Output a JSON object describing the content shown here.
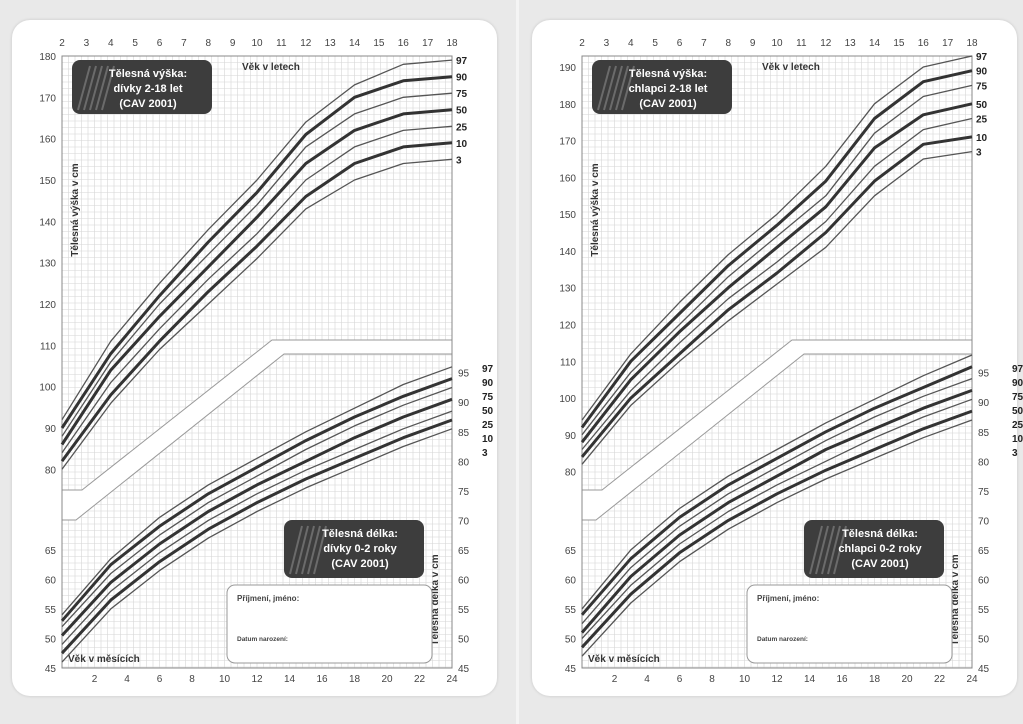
{
  "panels": [
    {
      "title_top": [
        "Tělesná výška:",
        "dívky 2-18 let",
        "(CAV 2001)"
      ],
      "title_bottom": [
        "Tělesná délka:",
        "dívky 0-2 roky",
        "(CAV 2001)"
      ],
      "top_axis_label": "Věk v letech",
      "left_axis_label": "Tělesná výška v cm",
      "right_axis_label": "Tělesná délka v cm",
      "bottom_axis_label": "Věk v měsících",
      "name_label": "Příjmení, jméno:",
      "dob_label": "Datum narození:"
    },
    {
      "title_top": [
        "Tělesná výška:",
        "chlapci 2-18 let",
        "(CAV 2001)"
      ],
      "title_bottom": [
        "Tělesná délka:",
        "chlapci 0-2 roky",
        "(CAV 2001)"
      ],
      "top_axis_label": "Věk v letech",
      "left_axis_label": "Tělesná výška v cm",
      "right_axis_label": "Tělesná délka v cm",
      "bottom_axis_label": "Věk v měsících",
      "name_label": "Příjmení, jméno:",
      "dob_label": "Datum narození:"
    }
  ],
  "chart_data": [
    {
      "type": "line",
      "title": "Tělesná výška: dívky 2-18 let (CAV 2001)",
      "xlabel": "Věk v letech",
      "ylabel": "Tělesná výška v cm",
      "x": [
        2,
        4,
        6,
        8,
        10,
        12,
        14,
        16,
        18
      ],
      "x_ticks": [
        2,
        3,
        4,
        5,
        6,
        7,
        8,
        9,
        10,
        11,
        12,
        13,
        14,
        15,
        16,
        17,
        18
      ],
      "xlim": [
        2,
        18
      ],
      "y_ticks": [
        80,
        90,
        100,
        110,
        120,
        130,
        140,
        150,
        160,
        170,
        180
      ],
      "ylim": [
        75,
        180
      ],
      "series": [
        {
          "name": "97",
          "values": [
            92,
            111,
            125,
            138,
            150,
            164,
            173,
            178,
            179
          ]
        },
        {
          "name": "90",
          "values": [
            90,
            108,
            122,
            135,
            147,
            161,
            170,
            174,
            175
          ]
        },
        {
          "name": "75",
          "values": [
            88,
            106,
            120,
            132,
            144,
            158,
            166,
            170,
            171
          ]
        },
        {
          "name": "50",
          "values": [
            86,
            104,
            117,
            129,
            141,
            154,
            162,
            166,
            167
          ]
        },
        {
          "name": "25",
          "values": [
            84,
            101,
            114,
            126,
            137,
            150,
            158,
            162,
            163
          ]
        },
        {
          "name": "10",
          "values": [
            82,
            98,
            111,
            123,
            134,
            146,
            154,
            158,
            159
          ]
        },
        {
          "name": "3",
          "values": [
            80,
            96,
            109,
            120,
            131,
            143,
            150,
            154,
            155
          ]
        }
      ],
      "grid": true
    },
    {
      "type": "line",
      "title": "Tělesná délka: dívky 0-2 roky (CAV 2001)",
      "xlabel": "Věk v měsících",
      "ylabel": "Tělesná délka v cm",
      "x": [
        0,
        3,
        6,
        9,
        12,
        15,
        18,
        21,
        24
      ],
      "x_ticks": [
        2,
        4,
        6,
        8,
        10,
        12,
        14,
        16,
        18,
        20,
        22,
        24
      ],
      "xlim": [
        0,
        24
      ],
      "y_ticks_left": [
        45,
        50,
        55,
        60,
        65
      ],
      "y_ticks_right": [
        45,
        50,
        55,
        60,
        65,
        70,
        75,
        80,
        85,
        90,
        95
      ],
      "ylim": [
        45,
        98
      ],
      "series": [
        {
          "name": "97",
          "values": [
            54,
            63.5,
            70.5,
            76,
            80.5,
            85,
            89,
            93,
            96
          ]
        },
        {
          "name": "90",
          "values": [
            53,
            62.5,
            69,
            74.5,
            79,
            83.5,
            87.5,
            91,
            94
          ]
        },
        {
          "name": "75",
          "values": [
            52,
            61,
            67.5,
            73,
            77.5,
            82,
            86,
            89.5,
            92.5
          ]
        },
        {
          "name": "50",
          "values": [
            50.5,
            59.5,
            66,
            71.5,
            76,
            80,
            84,
            87.5,
            90.5
          ]
        },
        {
          "name": "25",
          "values": [
            49,
            58,
            64.5,
            70,
            74.5,
            78.5,
            82,
            85.5,
            88.5
          ]
        },
        {
          "name": "10",
          "values": [
            47.5,
            56.5,
            63,
            68.5,
            73,
            77,
            80.5,
            84,
            87
          ]
        },
        {
          "name": "3",
          "values": [
            46,
            55,
            61.5,
            67,
            71.5,
            75.5,
            79,
            82.5,
            85.5
          ]
        }
      ],
      "grid": true
    },
    {
      "type": "line",
      "title": "Tělesná výška: chlapci 2-18 let (CAV 2001)",
      "xlabel": "Věk v letech",
      "ylabel": "Tělesná výška v cm",
      "x": [
        2,
        4,
        6,
        8,
        10,
        12,
        14,
        16,
        18
      ],
      "x_ticks": [
        2,
        3,
        4,
        5,
        6,
        7,
        8,
        9,
        10,
        11,
        12,
        13,
        14,
        15,
        16,
        17,
        18
      ],
      "xlim": [
        2,
        18
      ],
      "y_ticks": [
        80,
        90,
        100,
        110,
        120,
        130,
        140,
        150,
        160,
        170,
        180,
        190
      ],
      "ylim": [
        75,
        193
      ],
      "series": [
        {
          "name": "97",
          "values": [
            94,
            112,
            126,
            139,
            150,
            163,
            180,
            190,
            193
          ]
        },
        {
          "name": "90",
          "values": [
            92,
            110,
            123,
            136,
            147,
            159,
            176,
            186,
            189
          ]
        },
        {
          "name": "75",
          "values": [
            90,
            107,
            120,
            133,
            144,
            155,
            172,
            182,
            185
          ]
        },
        {
          "name": "50",
          "values": [
            88,
            105,
            118,
            130,
            141,
            152,
            168,
            177,
            180
          ]
        },
        {
          "name": "25",
          "values": [
            86,
            102,
            115,
            127,
            137,
            148,
            163,
            173,
            176
          ]
        },
        {
          "name": "10",
          "values": [
            84,
            100,
            112,
            124,
            134,
            145,
            159,
            169,
            171
          ]
        },
        {
          "name": "3",
          "values": [
            82,
            98,
            110,
            121,
            131,
            141,
            155,
            165,
            167
          ]
        }
      ],
      "grid": true
    },
    {
      "type": "line",
      "title": "Tělesná délka: chlapci 0-2 roky (CAV 2001)",
      "xlabel": "Věk v měsících",
      "ylabel": "Tělesná délka v cm",
      "x": [
        0,
        3,
        6,
        9,
        12,
        15,
        18,
        21,
        24
      ],
      "x_ticks": [
        2,
        4,
        6,
        8,
        10,
        12,
        14,
        16,
        18,
        20,
        22,
        24
      ],
      "xlim": [
        0,
        24
      ],
      "y_ticks_left": [
        45,
        50,
        55,
        60,
        65
      ],
      "y_ticks_right": [
        45,
        50,
        55,
        60,
        65,
        70,
        75,
        80,
        85,
        90,
        95
      ],
      "ylim": [
        45,
        98
      ],
      "series": [
        {
          "name": "97",
          "values": [
            55,
            65,
            72,
            77.5,
            82,
            86.5,
            90.5,
            94.5,
            98
          ]
        },
        {
          "name": "90",
          "values": [
            54,
            63.5,
            70.5,
            76,
            80.5,
            85,
            89,
            92.5,
            96
          ]
        },
        {
          "name": "75",
          "values": [
            52.5,
            62,
            69,
            74.5,
            79,
            83.5,
            87.5,
            91,
            94
          ]
        },
        {
          "name": "50",
          "values": [
            51,
            60.5,
            67.5,
            73,
            77.5,
            82,
            85.5,
            89,
            92
          ]
        },
        {
          "name": "25",
          "values": [
            50,
            59,
            66,
            71.5,
            76,
            80,
            84,
            87.5,
            90.5
          ]
        },
        {
          "name": "10",
          "values": [
            48.5,
            57.5,
            64.5,
            70,
            74.5,
            78.5,
            82,
            85.5,
            88.5
          ]
        },
        {
          "name": "3",
          "values": [
            47,
            56,
            63,
            68.5,
            73,
            77,
            80.5,
            84,
            87
          ]
        }
      ],
      "grid": true
    }
  ]
}
